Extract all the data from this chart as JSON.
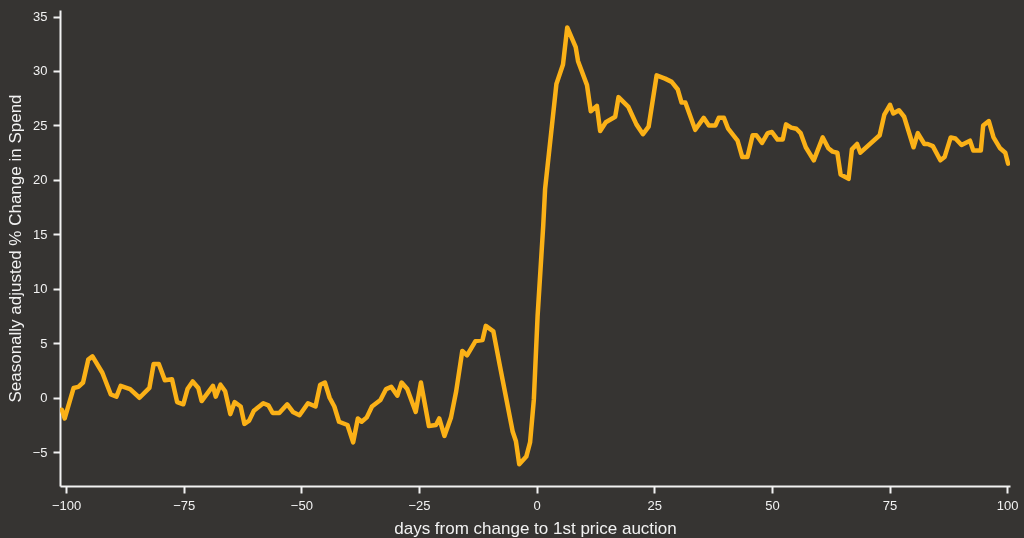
{
  "chart_data": {
    "type": "line",
    "xlabel": "days from change to 1st price auction",
    "ylabel": "Seasonally adjusted % Change in Spend",
    "x": [
      -100.9,
      -100.3,
      -98.4,
      -97.4,
      -96.4,
      -95.3,
      -94.4,
      -92.3,
      -90.5,
      -89.3,
      -88.4,
      -86.4,
      -84.4,
      -82.3,
      -81.4,
      -80.3,
      -79.0,
      -77.5,
      -76.4,
      -75.1,
      -74.2,
      -73.1,
      -71.9,
      -71.2,
      -68.8,
      -68.2,
      -67.2,
      -66.2,
      -65.1,
      -64.2,
      -62.9,
      -62.1,
      -61.1,
      -60.1,
      -58.1,
      -57.0,
      -56.1,
      -54.7,
      -53.0,
      -51.8,
      -50.4,
      -48.6,
      -47.0,
      -46.0,
      -45.0,
      -44.0,
      -43.0,
      -42.0,
      -40.2,
      -39.0,
      -38.0,
      -37.2,
      -36.1,
      -35.0,
      -33.2,
      -32.0,
      -30.9,
      -29.6,
      -28.7,
      -27.5,
      -25.7,
      -24.6,
      -22.9,
      -21.4,
      -20.7,
      -19.6,
      -18.2,
      -17.1,
      -15.8,
      -14.8,
      -13.0,
      -11.5,
      -10.8,
      -9.2,
      -7.8,
      -6.4,
      -5.1,
      -4.4,
      -3.7,
      -2.2,
      -1.4,
      -0.6,
      0.2,
      1.4,
      1.8,
      4.2,
      5.6,
      6.5,
      8.3,
      8.8,
      10.7,
      11.5,
      12.8,
      13.5,
      14.7,
      16.7,
      17.4,
      19.5,
      21.2,
      22.6,
      23.8,
      25.5,
      27.3,
      28.7,
      30.0,
      30.8,
      31.6,
      33.7,
      35.5,
      36.6,
      38.0,
      38.7,
      39.8,
      40.7,
      42.7,
      43.7,
      44.8,
      45.9,
      46.7,
      47.9,
      49.1,
      50.0,
      51.2,
      52.3,
      53.0,
      54.1,
      55.2,
      56.1,
      57.2,
      58.9,
      60.8,
      62.0,
      62.9,
      63.9,
      64.6,
      66.3,
      67.0,
      68.1,
      68.8,
      72.9,
      73.9,
      75.1,
      75.8,
      77.0,
      78.1,
      80.1,
      81.0,
      82.4,
      83.1,
      84.2,
      85.8,
      86.7,
      88.0,
      89.0,
      90.3,
      92.1,
      92.8,
      94.4,
      94.9,
      96.1,
      97.1,
      98.5,
      99.6,
      100.2
    ],
    "series": [
      {
        "color": "#fbb117",
        "values": [
          -1.1,
          -1.9,
          0.9,
          1.0,
          1.4,
          3.5,
          3.8,
          2.3,
          0.3,
          0.1,
          1.1,
          0.8,
          0.0,
          0.9,
          3.1,
          3.1,
          1.6,
          1.7,
          -0.4,
          -0.6,
          0.8,
          1.5,
          0.9,
          -0.3,
          1.1,
          0.1,
          1.2,
          0.6,
          -1.5,
          -0.4,
          -0.8,
          -2.4,
          -2.1,
          -1.2,
          -0.5,
          -0.7,
          -1.4,
          -1.4,
          -0.6,
          -1.3,
          -1.6,
          -0.5,
          -0.8,
          1.2,
          1.4,
          0.0,
          -0.8,
          -2.2,
          -2.5,
          -4.1,
          -1.9,
          -2.2,
          -1.8,
          -0.8,
          -0.2,
          0.8,
          1.0,
          0.2,
          1.4,
          0.8,
          -1.3,
          1.4,
          -2.6,
          -2.5,
          -1.9,
          -3.5,
          -1.8,
          0.6,
          4.3,
          3.9,
          5.2,
          5.3,
          6.6,
          6.1,
          2.9,
          -0.2,
          -3.1,
          -4.0,
          -6.1,
          -5.4,
          -4.1,
          -0.2,
          7.5,
          15.8,
          19.2,
          28.8,
          30.6,
          34.0,
          32.2,
          30.9,
          28.7,
          26.3,
          26.8,
          24.5,
          25.3,
          25.8,
          27.6,
          26.7,
          25.1,
          24.2,
          24.9,
          29.6,
          29.3,
          29.0,
          28.3,
          27.1,
          27.1,
          24.6,
          25.7,
          25.0,
          25.0,
          25.7,
          25.7,
          24.7,
          23.6,
          22.1,
          22.1,
          24.1,
          24.1,
          23.4,
          24.3,
          24.4,
          23.7,
          23.7,
          25.1,
          24.8,
          24.7,
          24.3,
          23.0,
          21.8,
          23.9,
          22.9,
          22.6,
          22.5,
          20.5,
          20.1,
          22.8,
          23.3,
          22.5,
          24.1,
          26.0,
          26.9,
          26.1,
          26.4,
          25.8,
          23.0,
          24.3,
          23.3,
          23.3,
          23.1,
          21.8,
          22.1,
          23.9,
          23.8,
          23.2,
          23.6,
          22.7,
          22.7,
          25.0,
          25.4,
          23.9,
          22.9,
          22.5,
          21.5
        ]
      }
    ],
    "xlim": [
      -101.3,
      100.6
    ],
    "ylim": [
      -8.1,
      35.6
    ],
    "xticks": [
      -100,
      -75,
      -50,
      -25,
      0,
      25,
      50,
      75,
      100
    ],
    "yticks": [
      -5,
      0,
      5,
      10,
      15,
      20,
      25,
      30,
      35
    ],
    "line_style": "solid",
    "marker": "none"
  }
}
